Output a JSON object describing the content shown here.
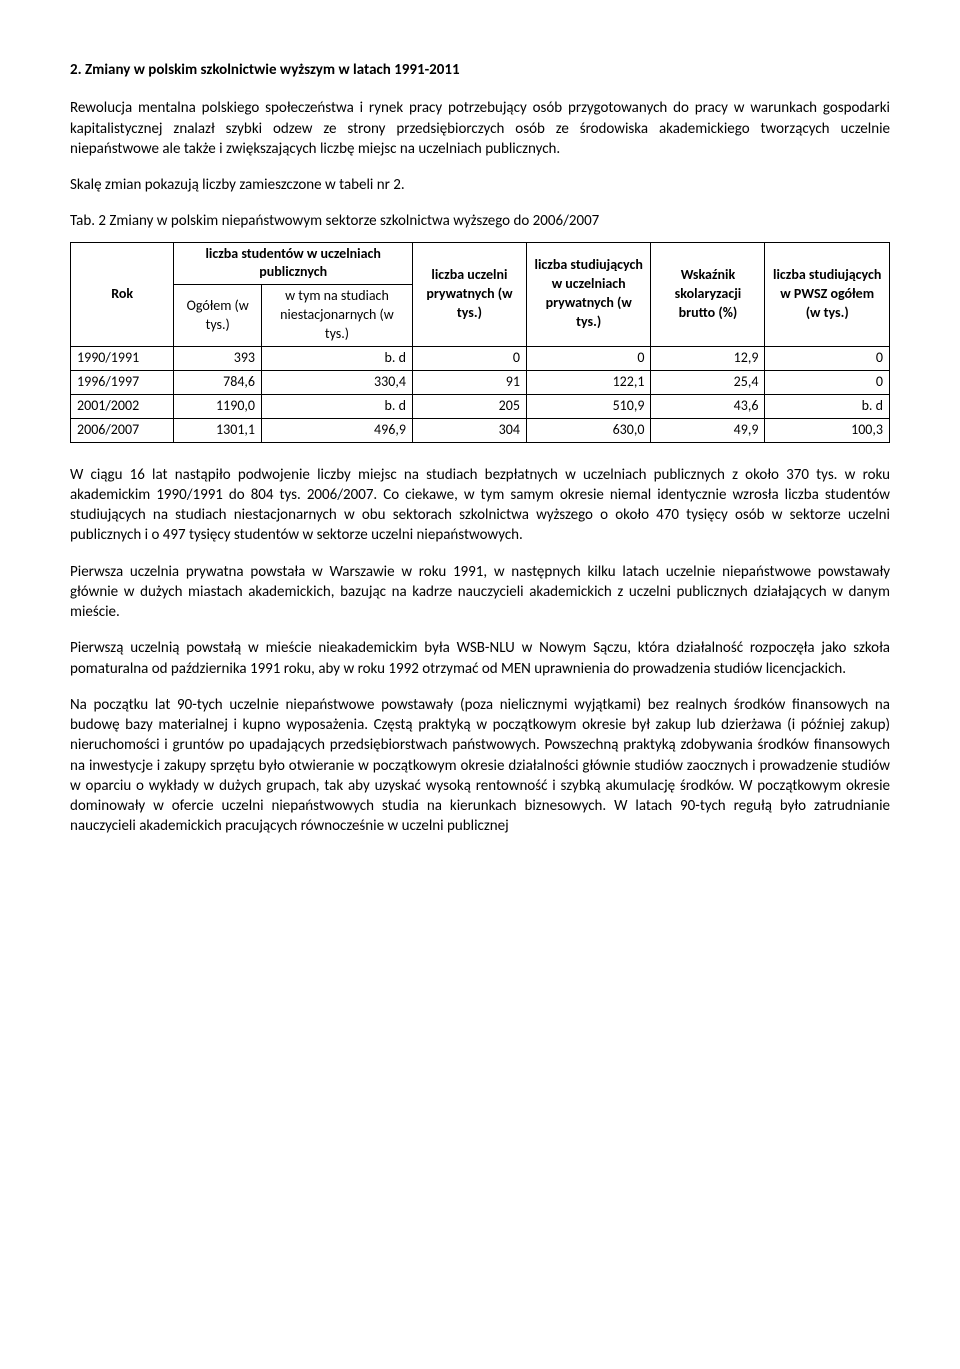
{
  "heading": "2. Zmiany w polskim szkolnictwie wyższym w latach 1991-2011",
  "para1": "Rewolucja mentalna polskiego społeczeństwa i rynek pracy potrzebujący osób przygotowanych do pracy w warunkach gospodarki kapitalistycznej znalazł szybki odzew ze strony przedsiębiorczych osób ze środowiska akademickiego tworzących uczelnie niepaństwowe ale także i zwiększających liczbę miejsc na uczelniach publicznych.",
  "para2": "Skalę zmian pokazują liczby zamieszczone w tabeli nr 2.",
  "tableTitle": "Tab. 2 Zmiany w polskim niepaństwowym sektorze szkolnictwa wyższego do 2006/2007",
  "headers": {
    "rok": "Rok",
    "liczbaStud": "liczba studentów w uczelniach publicznych",
    "ogolem": "Ogółem (w tys.)",
    "wtym": "w tym na studiach niestacjonarnych (w tys.)",
    "uczelniPriv": "liczba uczelni prywatnych (w tys.)",
    "studPriv": "liczba studiujących w uczelniach prywatnych (w tys.)",
    "wskaznik": "Wskaźnik skolaryzacji brutto (%)",
    "pwsz": "liczba studiujących w PWSZ ogółem (w tys.)"
  },
  "rows": [
    {
      "rok": "1990/1991",
      "ogolem": "393",
      "wtym": "b. d",
      "uczelniPriv": "0",
      "studPriv": "0",
      "wskaznik": "12,9",
      "pwsz": "0"
    },
    {
      "rok": "1996/1997",
      "ogolem": "784,6",
      "wtym": "330,4",
      "uczelniPriv": "91",
      "studPriv": "122,1",
      "wskaznik": "25,4",
      "pwsz": "0"
    },
    {
      "rok": "2001/2002",
      "ogolem": "1190,0",
      "wtym": "b. d",
      "uczelniPriv": "205",
      "studPriv": "510,9",
      "wskaznik": "43,6",
      "pwsz": "b. d"
    },
    {
      "rok": "2006/2007",
      "ogolem": "1301,1",
      "wtym": "496,9",
      "uczelniPriv": "304",
      "studPriv": "630,0",
      "wskaznik": "49,9",
      "pwsz": "100,3"
    }
  ],
  "para3": "W ciągu 16 lat nastąpiło podwojenie liczby miejsc na studiach bezpłatnych w uczelniach publicznych z około 370 tys. w roku akademickim 1990/1991 do 804 tys. 2006/2007. Co ciekawe, w tym samym okresie niemal identycznie wzrosła liczba studentów studiujących na studiach niestacjonarnych w obu sektorach szkolnictwa wyższego o około 470 tysięcy osób w sektorze uczelni publicznych i o 497 tysięcy studentów w sektorze uczelni niepaństwowych.",
  "para4": "Pierwsza uczelnia prywatna powstała w Warszawie w roku 1991, w następnych kilku latach uczelnie niepaństwowe powstawały głównie w dużych miastach akademickich, bazując na kadrze nauczycieli akademickich z uczelni publicznych działających w danym mieście.",
  "para5": "Pierwszą uczelnią powstałą w mieście nieakademickim była WSB-NLU w Nowym Sączu, która działalność rozpoczęła jako szkoła pomaturalna od października 1991 roku, aby w roku 1992 otrzymać od MEN uprawnienia do prowadzenia studiów licencjackich.",
  "para6": "Na początku lat 90-tych uczelnie niepaństwowe powstawały (poza nielicznymi wyjątkami) bez realnych środków finansowych na budowę bazy materialnej i kupno wyposażenia. Częstą praktyką w początkowym okresie był zakup lub dzierżawa (i później zakup) nieruchomości i gruntów po upadających przedsiębiorstwach państwowych. Powszechną praktyką zdobywania środków finansowych na inwestycje i zakupy sprzętu było otwieranie w początkowym okresie działalności głównie studiów zaocznych i prowadzenie studiów w oparciu o wykłady w dużych grupach, tak aby uzyskać wysoką rentowność i szybką akumulację środków. W początkowym okresie dominowały w ofercie uczelni niepaństwowych studia na kierunkach biznesowych. W latach 90-tych regułą było zatrudnianie nauczycieli akademickich pracujących równocześnie w uczelni publicznej"
}
